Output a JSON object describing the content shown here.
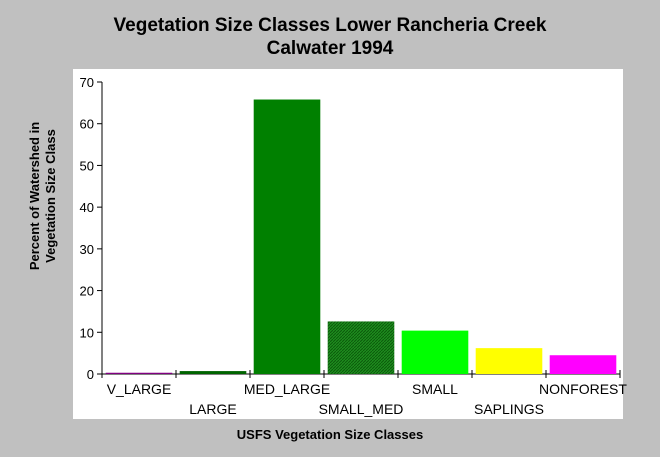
{
  "chart_data": {
    "type": "bar",
    "title": "Vegetation Size Classes Lower Rancheria Creek",
    "subtitle": "Calwater 1994",
    "xlabel": "USFS Vegetation Size Classes",
    "ylabel_line1": "Percent of Watershed in",
    "ylabel_line2": "Vegetation Size Class",
    "categories": [
      "V_LARGE",
      "LARGE",
      "MED_LARGE",
      "SMALL_MED",
      "SMALL",
      "SAPLINGS",
      "NONFOREST"
    ],
    "values": [
      0.3,
      0.7,
      65.8,
      12.6,
      10.4,
      6.2,
      4.5
    ],
    "colors": [
      "#800080",
      "#006400",
      "#008000",
      "#1a8a1a",
      "#00ff00",
      "#ffff00",
      "#ff00ff"
    ],
    "ylim": [
      0,
      70
    ],
    "yticks": [
      0,
      10,
      20,
      30,
      40,
      50,
      60,
      70
    ],
    "grid": false,
    "legend": false
  }
}
